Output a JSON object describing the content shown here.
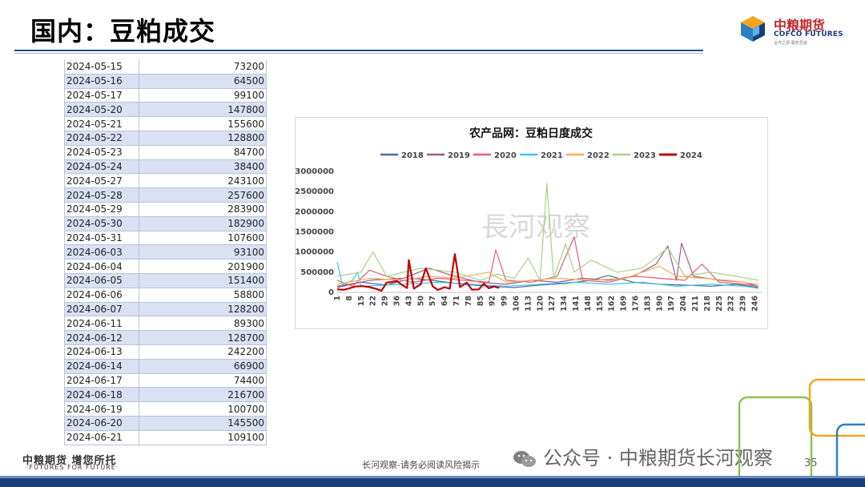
{
  "page": {
    "title": "国内：豆粕成交",
    "logo_cn": "中粮期货",
    "logo_en": "COFCO FUTURES",
    "logo_sub": "合作之源 服务至诚",
    "footer_cn": "中粮期货 增您所托",
    "footer_en": "·FUTURES FOR FUTURE·",
    "disclaimer": "长河观察-请务必阅读风险揭示",
    "wechat": "公众号 · 中粮期货长河观察",
    "page_number": "35",
    "watermark": "長河观察",
    "colors": {
      "brand_blue": "#1a3d7c",
      "brand_red": "#c0272d",
      "table_stripe": "#d9e1f2"
    }
  },
  "table": {
    "rows": [
      {
        "date": "2024-05-15",
        "value": "73200"
      },
      {
        "date": "2024-05-16",
        "value": "64500"
      },
      {
        "date": "2024-05-17",
        "value": "99100"
      },
      {
        "date": "2024-05-20",
        "value": "147800"
      },
      {
        "date": "2024-05-21",
        "value": "155600"
      },
      {
        "date": "2024-05-22",
        "value": "128800"
      },
      {
        "date": "2024-05-23",
        "value": "84700"
      },
      {
        "date": "2024-05-24",
        "value": "38400"
      },
      {
        "date": "2024-05-27",
        "value": "243100"
      },
      {
        "date": "2024-05-28",
        "value": "257600"
      },
      {
        "date": "2024-05-29",
        "value": "283900"
      },
      {
        "date": "2024-05-30",
        "value": "182900"
      },
      {
        "date": "2024-05-31",
        "value": "107600"
      },
      {
        "date": "2024-06-03",
        "value": "93100"
      },
      {
        "date": "2024-06-04",
        "value": "201900"
      },
      {
        "date": "2024-06-05",
        "value": "151400"
      },
      {
        "date": "2024-06-06",
        "value": "58800"
      },
      {
        "date": "2024-06-07",
        "value": "128200"
      },
      {
        "date": "2024-06-11",
        "value": "89300"
      },
      {
        "date": "2024-06-12",
        "value": "128700"
      },
      {
        "date": "2024-06-13",
        "value": "242200"
      },
      {
        "date": "2024-06-14",
        "value": "66900"
      },
      {
        "date": "2024-06-17",
        "value": "74400"
      },
      {
        "date": "2024-06-18",
        "value": "216700"
      },
      {
        "date": "2024-06-19",
        "value": "100700"
      },
      {
        "date": "2024-06-20",
        "value": "145500"
      },
      {
        "date": "2024-06-21",
        "value": "109100"
      }
    ]
  },
  "chart_data": {
    "type": "line",
    "title": "农产品网：豆粕日度成交",
    "xlabel": "",
    "ylabel": "",
    "ylim": [
      0,
      3000000
    ],
    "yticks": [
      "0",
      "500000",
      "1000000",
      "1500000",
      "2000000",
      "2500000",
      "3000000"
    ],
    "xlim": [
      1,
      250
    ],
    "xticks": [
      1,
      8,
      15,
      22,
      29,
      36,
      43,
      50,
      57,
      64,
      71,
      78,
      85,
      92,
      99,
      106,
      113,
      120,
      127,
      134,
      141,
      148,
      155,
      162,
      169,
      176,
      183,
      190,
      197,
      204,
      211,
      218,
      225,
      232,
      239,
      246
    ],
    "legend_position": "top",
    "grid": false,
    "series": [
      {
        "name": "2018",
        "color": "#4e6e9a",
        "width": 1.2,
        "points": [
          [
            1,
            150000
          ],
          [
            15,
            250000
          ],
          [
            30,
            180000
          ],
          [
            45,
            350000
          ],
          [
            60,
            280000
          ],
          [
            75,
            200000
          ],
          [
            90,
            150000
          ],
          [
            105,
            120000
          ],
          [
            120,
            180000
          ],
          [
            135,
            220000
          ],
          [
            150,
            300000
          ],
          [
            160,
            420000
          ],
          [
            175,
            250000
          ],
          [
            190,
            200000
          ],
          [
            205,
            180000
          ],
          [
            220,
            150000
          ],
          [
            235,
            200000
          ],
          [
            248,
            120000
          ]
        ]
      },
      {
        "name": "2019",
        "color": "#9a5c8c",
        "width": 1.2,
        "points": [
          [
            1,
            120000
          ],
          [
            20,
            300000
          ],
          [
            40,
            350000
          ],
          [
            55,
            600000
          ],
          [
            70,
            400000
          ],
          [
            85,
            250000
          ],
          [
            100,
            200000
          ],
          [
            115,
            300000
          ],
          [
            130,
            250000
          ],
          [
            145,
            350000
          ],
          [
            160,
            300000
          ],
          [
            175,
            400000
          ],
          [
            188,
            700000
          ],
          [
            195,
            1150000
          ],
          [
            200,
            300000
          ],
          [
            203,
            1220000
          ],
          [
            210,
            400000
          ],
          [
            225,
            300000
          ],
          [
            240,
            250000
          ],
          [
            248,
            150000
          ]
        ]
      },
      {
        "name": "2020",
        "color": "#e06072",
        "width": 1.2,
        "points": [
          [
            1,
            300000
          ],
          [
            10,
            150000
          ],
          [
            20,
            550000
          ],
          [
            30,
            400000
          ],
          [
            45,
            250000
          ],
          [
            60,
            350000
          ],
          [
            75,
            300000
          ],
          [
            90,
            250000
          ],
          [
            94,
            1050000
          ],
          [
            100,
            300000
          ],
          [
            115,
            250000
          ],
          [
            130,
            400000
          ],
          [
            140,
            1370000
          ],
          [
            145,
            300000
          ],
          [
            160,
            250000
          ],
          [
            175,
            400000
          ],
          [
            190,
            350000
          ],
          [
            205,
            300000
          ],
          [
            215,
            700000
          ],
          [
            225,
            250000
          ],
          [
            240,
            200000
          ],
          [
            248,
            150000
          ]
        ]
      },
      {
        "name": "2021",
        "color": "#3ec6e8",
        "width": 1.2,
        "points": [
          [
            1,
            750000
          ],
          [
            4,
            200000
          ],
          [
            10,
            300000
          ],
          [
            13,
            500000
          ],
          [
            15,
            150000
          ],
          [
            40,
            200000
          ],
          [
            60,
            250000
          ],
          [
            80,
            200000
          ],
          [
            100,
            150000
          ],
          [
            120,
            200000
          ],
          [
            140,
            250000
          ],
          [
            160,
            200000
          ],
          [
            180,
            250000
          ],
          [
            200,
            150000
          ],
          [
            220,
            200000
          ],
          [
            240,
            150000
          ],
          [
            248,
            100000
          ]
        ]
      },
      {
        "name": "2022",
        "color": "#f5b05a",
        "width": 1.2,
        "points": [
          [
            1,
            200000
          ],
          [
            20,
            350000
          ],
          [
            40,
            300000
          ],
          [
            55,
            400000
          ],
          [
            70,
            350000
          ],
          [
            90,
            500000
          ],
          [
            100,
            250000
          ],
          [
            115,
            300000
          ],
          [
            130,
            350000
          ],
          [
            150,
            300000
          ],
          [
            170,
            350000
          ],
          [
            190,
            650000
          ],
          [
            200,
            400000
          ],
          [
            215,
            350000
          ],
          [
            230,
            300000
          ],
          [
            248,
            200000
          ]
        ]
      },
      {
        "name": "2023",
        "color": "#a7d08c",
        "width": 1.2,
        "points": [
          [
            1,
            400000
          ],
          [
            15,
            500000
          ],
          [
            22,
            1000000
          ],
          [
            30,
            400000
          ],
          [
            50,
            600000
          ],
          [
            70,
            500000
          ],
          [
            85,
            300000
          ],
          [
            95,
            450000
          ],
          [
            105,
            350000
          ],
          [
            113,
            850000
          ],
          [
            120,
            300000
          ],
          [
            124,
            2700000
          ],
          [
            128,
            350000
          ],
          [
            135,
            1200000
          ],
          [
            140,
            500000
          ],
          [
            150,
            800000
          ],
          [
            165,
            500000
          ],
          [
            180,
            600000
          ],
          [
            195,
            1100000
          ],
          [
            205,
            400000
          ],
          [
            220,
            500000
          ],
          [
            235,
            400000
          ],
          [
            248,
            300000
          ]
        ]
      },
      {
        "name": "2024",
        "color": "#c00000",
        "width": 2.2,
        "points": [
          [
            1,
            73200
          ],
          [
            5,
            64500
          ],
          [
            8,
            99100
          ],
          [
            12,
            147800
          ],
          [
            16,
            155600
          ],
          [
            20,
            128800
          ],
          [
            24,
            84700
          ],
          [
            27,
            38400
          ],
          [
            30,
            243100
          ],
          [
            33,
            257600
          ],
          [
            36,
            283900
          ],
          [
            39,
            182900
          ],
          [
            42,
            107600
          ],
          [
            43,
            800000
          ],
          [
            46,
            93100
          ],
          [
            50,
            201900
          ],
          [
            53,
            600000
          ],
          [
            57,
            151400
          ],
          [
            60,
            58800
          ],
          [
            64,
            128200
          ],
          [
            67,
            89300
          ],
          [
            70,
            950000
          ],
          [
            73,
            128700
          ],
          [
            77,
            242200
          ],
          [
            80,
            66900
          ],
          [
            84,
            74400
          ],
          [
            87,
            216700
          ],
          [
            90,
            100700
          ],
          [
            93,
            145500
          ],
          [
            96,
            109100
          ]
        ]
      }
    ]
  }
}
